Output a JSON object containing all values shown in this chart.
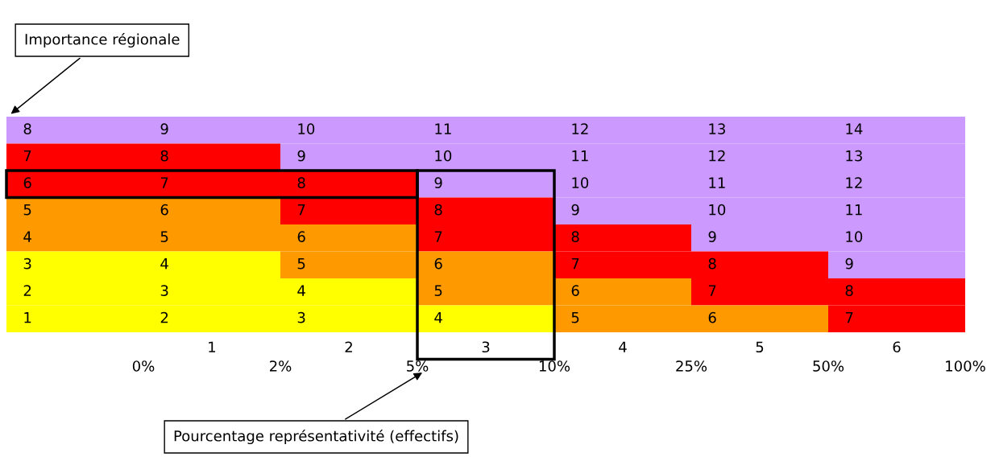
{
  "chart_data": {
    "type": "heatmap",
    "categories": [
      null,
      "1",
      "2",
      "3",
      "4",
      "5",
      "6"
    ],
    "y_categories": [
      null,
      null,
      null,
      null,
      null,
      null,
      null,
      null
    ],
    "cells": [
      [
        8,
        9,
        10,
        11,
        12,
        13,
        14
      ],
      [
        7,
        8,
        9,
        10,
        11,
        12,
        13
      ],
      [
        6,
        7,
        8,
        9,
        10,
        11,
        12
      ],
      [
        5,
        6,
        7,
        8,
        9,
        10,
        11
      ],
      [
        4,
        5,
        6,
        7,
        8,
        9,
        10
      ],
      [
        3,
        4,
        5,
        6,
        7,
        8,
        9
      ],
      [
        2,
        3,
        4,
        5,
        6,
        7,
        8
      ],
      [
        1,
        2,
        3,
        4,
        5,
        6,
        7
      ]
    ],
    "colors": [
      [
        "#cc99ff",
        "#cc99ff",
        "#cc99ff",
        "#cc99ff",
        "#cc99ff",
        "#cc99ff",
        "#cc99ff"
      ],
      [
        "#ff0000",
        "#ff0000",
        "#cc99ff",
        "#cc99ff",
        "#cc99ff",
        "#cc99ff",
        "#cc99ff"
      ],
      [
        "#ff0000",
        "#ff0000",
        "#ff0000",
        "#cc99ff",
        "#cc99ff",
        "#cc99ff",
        "#cc99ff"
      ],
      [
        "#ff9900",
        "#ff9900",
        "#ff0000",
        "#ff0000",
        "#cc99ff",
        "#cc99ff",
        "#cc99ff"
      ],
      [
        "#ff9900",
        "#ff9900",
        "#ff9900",
        "#ff0000",
        "#ff0000",
        "#cc99ff",
        "#cc99ff"
      ],
      [
        "#ffff00",
        "#ffff00",
        "#ff9900",
        "#ff9900",
        "#ff0000",
        "#ff0000",
        "#cc99ff"
      ],
      [
        "#ffff00",
        "#ffff00",
        "#ffff00",
        "#ff9900",
        "#ff9900",
        "#ff0000",
        "#ff0000"
      ],
      [
        "#ffff00",
        "#ffff00",
        "#ffff00",
        "#ffff00",
        "#ff9900",
        "#ff9900",
        "#ff0000"
      ]
    ],
    "tick_labels": "x",
    "data_labels": true,
    "annotations": [
      "Importance régionale",
      "Pourcentage représentativité (effectifs)",
      "0%",
      "2%",
      "5%",
      "10%",
      "25%",
      "50%",
      "100%"
    ]
  }
}
